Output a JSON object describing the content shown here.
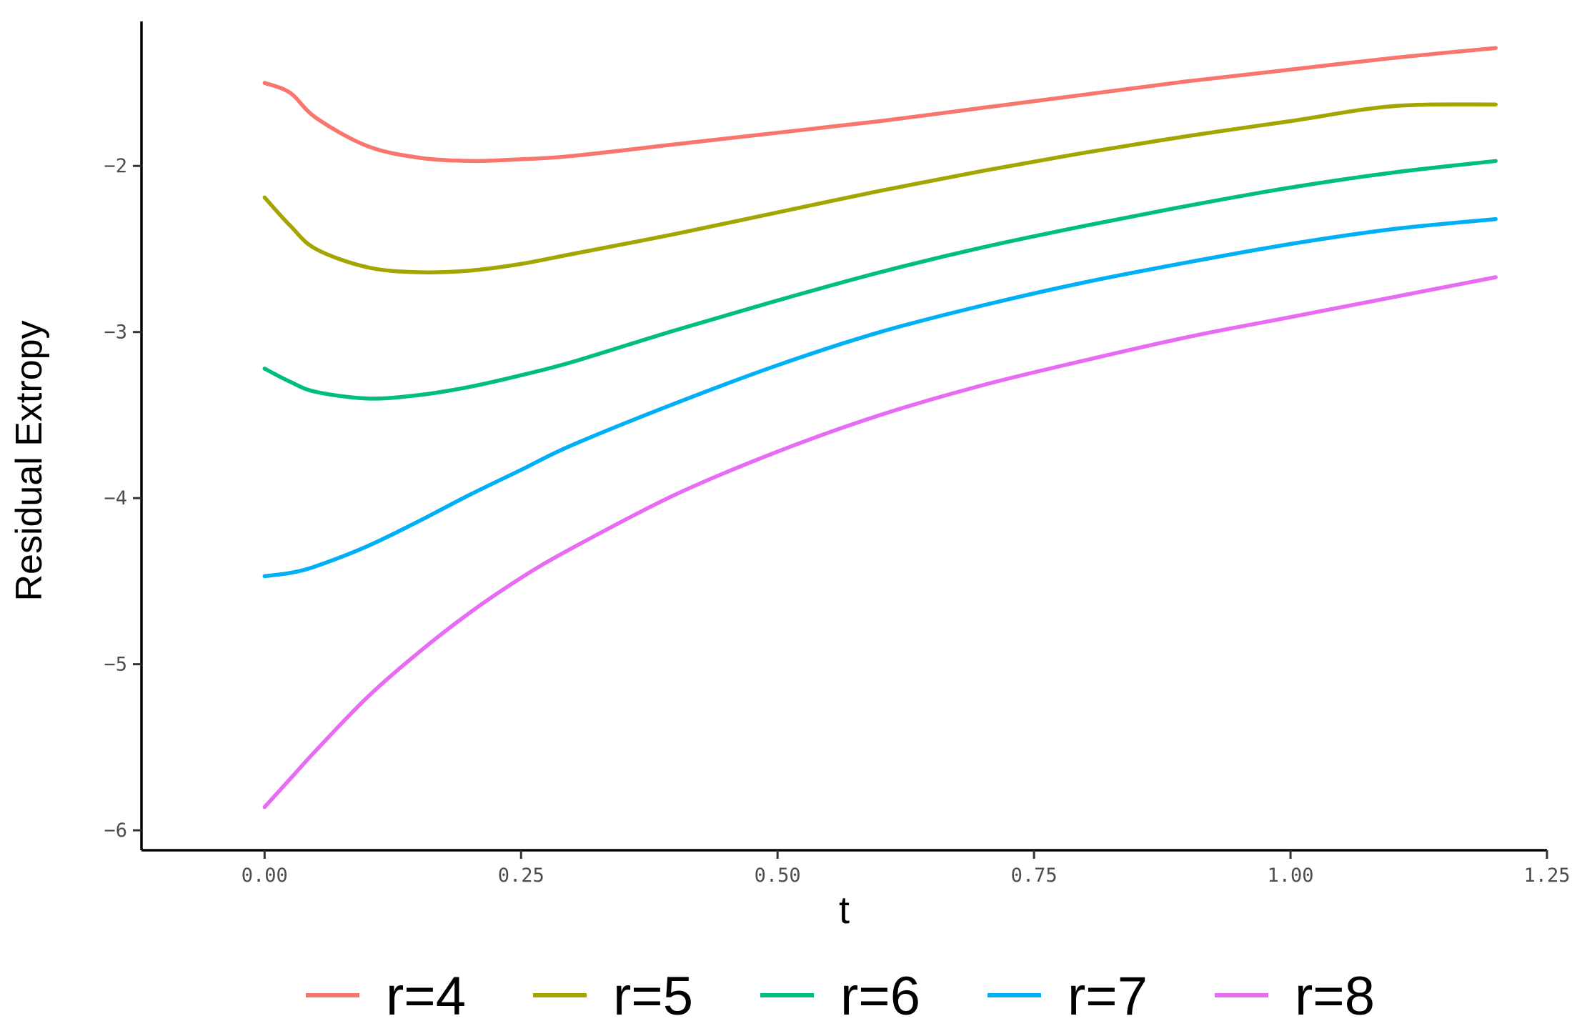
{
  "chart_data": {
    "type": "line",
    "title": "",
    "xlabel": "t",
    "ylabel": "Residual Extropy",
    "xlim": [
      -0.12,
      1.25
    ],
    "ylim": [
      -6.12,
      -1.13
    ],
    "x_ticks": [
      0.0,
      0.25,
      0.5,
      0.75,
      1.0,
      1.25
    ],
    "x_tick_labels": [
      "0.00",
      "0.25",
      "0.50",
      "0.75",
      "1.00",
      "1.25"
    ],
    "y_ticks": [
      -6,
      -5,
      -4,
      -3,
      -2
    ],
    "y_tick_labels": [
      "-6",
      "-5",
      "-4",
      "-3",
      "-2"
    ],
    "grid": false,
    "legend_position": "bottom",
    "x": [
      0.0,
      0.025,
      0.05,
      0.1,
      0.15,
      0.2,
      0.25,
      0.3,
      0.4,
      0.5,
      0.6,
      0.7,
      0.8,
      0.9,
      1.0,
      1.1,
      1.2
    ],
    "series": [
      {
        "name": "r=4",
        "color": "#F8766D",
        "values": [
          -1.5,
          -1.56,
          -1.71,
          -1.88,
          -1.95,
          -1.97,
          -1.96,
          -1.94,
          -1.87,
          -1.8,
          -1.73,
          -1.65,
          -1.57,
          -1.49,
          -1.42,
          -1.35,
          -1.29
        ]
      },
      {
        "name": "r=5",
        "color": "#A3A500",
        "values": [
          -2.19,
          -2.36,
          -2.5,
          -2.61,
          -2.64,
          -2.63,
          -2.59,
          -2.53,
          -2.41,
          -2.28,
          -2.15,
          -2.03,
          -1.92,
          -1.82,
          -1.73,
          -1.64,
          -1.63
        ]
      },
      {
        "name": "r=6",
        "color": "#00BF7D",
        "values": [
          -3.22,
          -3.3,
          -3.36,
          -3.4,
          -3.38,
          -3.33,
          -3.26,
          -3.18,
          -2.99,
          -2.81,
          -2.64,
          -2.49,
          -2.36,
          -2.24,
          -2.13,
          -2.04,
          -1.97
        ]
      },
      {
        "name": "r=7",
        "color": "#00B0F6",
        "values": [
          -4.47,
          -4.45,
          -4.41,
          -4.29,
          -4.14,
          -3.98,
          -3.83,
          -3.68,
          -3.43,
          -3.2,
          -3.0,
          -2.84,
          -2.7,
          -2.58,
          -2.47,
          -2.38,
          -2.32
        ]
      },
      {
        "name": "r=8",
        "color": "#E76BF3",
        "values": [
          -5.86,
          -5.69,
          -5.52,
          -5.2,
          -4.93,
          -4.69,
          -4.48,
          -4.3,
          -3.98,
          -3.72,
          -3.5,
          -3.32,
          -3.17,
          -3.03,
          -2.91,
          -2.79,
          -2.67
        ]
      }
    ]
  }
}
